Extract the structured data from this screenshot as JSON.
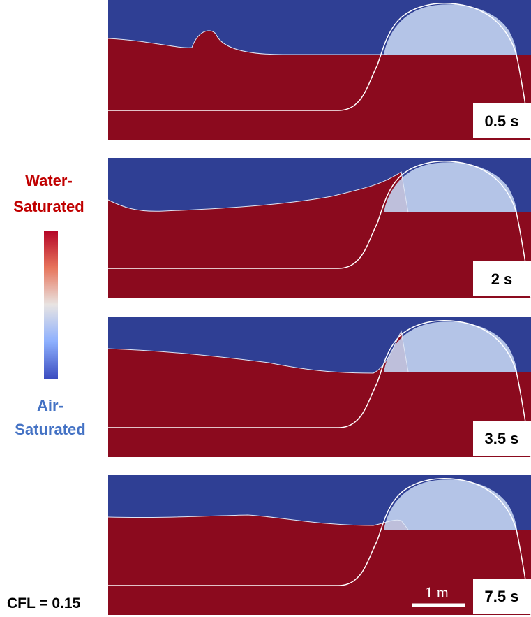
{
  "legend": {
    "top": [
      "Water-",
      "Saturated"
    ],
    "bottom": [
      "Air-",
      "Saturated"
    ]
  },
  "panels": [
    {
      "time": "0.5 s"
    },
    {
      "time": "2 s"
    },
    {
      "time": "3.5 s"
    },
    {
      "time": "7.5 s"
    }
  ],
  "scale_bar": "1 m",
  "cfl": "CFL = 0.15"
}
